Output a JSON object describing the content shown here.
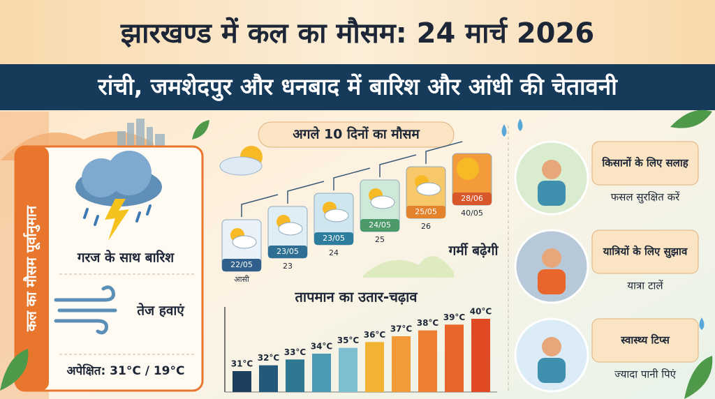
{
  "header": {
    "title": "झारखण्ड में कल का मौसम: 24 मार्च 2026",
    "subtitle": "रांची, जमशेदपुर और धनबाद में बारिश और आंधी की चेतावनी"
  },
  "today_panel": {
    "heading": "कल का मौसम पूर्वानुमान",
    "condition": "गरज के साथ बारिश",
    "wind": "तेज हवाएं",
    "expected": "अपेक्षित: 31°C / 19°C"
  },
  "forecast": {
    "title": "अगले 10 दिनों का मौसम",
    "days": [
      {
        "date": "22/05",
        "label": "आसी"
      },
      {
        "date": "23/05",
        "label": "23"
      },
      {
        "date": "23/05",
        "label": "24"
      },
      {
        "date": "24/05",
        "label": "25"
      },
      {
        "date": "25/05",
        "label": "26"
      },
      {
        "date": "28/06",
        "label": "40/05"
      }
    ],
    "note": "गर्मी बढ़ेगी"
  },
  "temperature_chart": {
    "type": "bar",
    "title": "तापमान का उतार-चढ़ाव",
    "values": [
      31,
      32,
      33,
      34,
      35,
      36,
      37,
      38,
      39,
      40
    ],
    "value_labels": [
      "31°C",
      "32°C",
      "33°C",
      "34°C",
      "35°C",
      "36°C",
      "37°C",
      "38°C",
      "39°C",
      "40°C"
    ],
    "colors": [
      "#1d3f5e",
      "#24597a",
      "#2f7891",
      "#4a9ab3",
      "#7fbfd0",
      "#f2b233",
      "#f29a38",
      "#ee7f33",
      "#e8662b",
      "#e04b25"
    ]
  },
  "advice": [
    {
      "title": "किसानों के लिए सलाह",
      "text": "फसल सुरक्षित करें"
    },
    {
      "title": "यात्रियों के लिए सुझाव",
      "text": "यात्रा टालें"
    },
    {
      "title": "स्वास्थ्य टिप्स",
      "text": "ज्यादा पानी पिएं"
    }
  ]
}
